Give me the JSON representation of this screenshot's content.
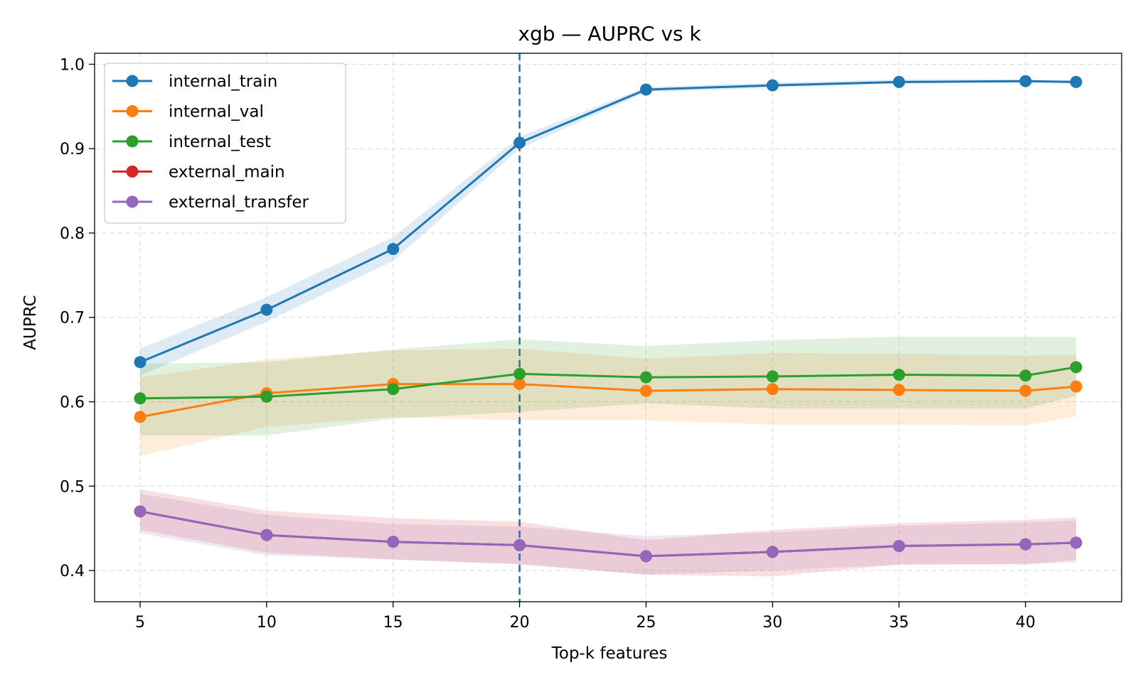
{
  "chart_data": {
    "type": "line",
    "title": "xgb — AUPRC vs k",
    "xlabel": "Top-k features",
    "ylabel": "AUPRC",
    "x": [
      5,
      10,
      15,
      20,
      25,
      30,
      35,
      40,
      42
    ],
    "xticks": [
      5,
      10,
      15,
      20,
      25,
      30,
      35,
      40
    ],
    "yticks": [
      0.4,
      0.5,
      0.6,
      0.7,
      0.8,
      0.9,
      1.0
    ],
    "xlim": [
      3.2,
      43.8
    ],
    "ylim": [
      0.363,
      1.013
    ],
    "grid": true,
    "legend_position": "top-left",
    "vline": {
      "x": 20,
      "color": "#1f77b4",
      "style": "dashed"
    },
    "series": [
      {
        "name": "internal_train",
        "color": "#1f77b4",
        "values": [
          0.647,
          0.709,
          0.781,
          0.907,
          0.97,
          0.975,
          0.979,
          0.98,
          0.979
        ],
        "lower": [
          0.631,
          0.695,
          0.767,
          0.9,
          0.967,
          0.972,
          0.977,
          0.978,
          0.977
        ],
        "upper": [
          0.663,
          0.724,
          0.795,
          0.914,
          0.973,
          0.978,
          0.982,
          0.982,
          0.981
        ]
      },
      {
        "name": "internal_val",
        "color": "#ff7f0e",
        "values": [
          0.582,
          0.61,
          0.621,
          0.621,
          0.613,
          0.615,
          0.614,
          0.613,
          0.618
        ],
        "lower": [
          0.536,
          0.57,
          0.582,
          0.578,
          0.578,
          0.573,
          0.573,
          0.572,
          0.583
        ],
        "upper": [
          0.629,
          0.65,
          0.661,
          0.663,
          0.651,
          0.658,
          0.657,
          0.655,
          0.656
        ]
      },
      {
        "name": "internal_test",
        "color": "#2ca02c",
        "values": [
          0.604,
          0.606,
          0.615,
          0.633,
          0.629,
          0.63,
          0.632,
          0.631,
          0.641
        ],
        "lower": [
          0.56,
          0.56,
          0.58,
          0.588,
          0.598,
          0.592,
          0.592,
          0.592,
          0.607
        ],
        "upper": [
          0.645,
          0.647,
          0.662,
          0.674,
          0.666,
          0.673,
          0.677,
          0.677,
          0.677
        ]
      },
      {
        "name": "external_main",
        "color": "#d62728",
        "values": [
          0.47,
          0.442,
          0.434,
          0.43,
          0.417,
          0.422,
          0.429,
          0.431,
          0.433
        ],
        "lower": [
          0.448,
          0.421,
          0.413,
          0.408,
          0.395,
          0.393,
          0.407,
          0.408,
          0.41
        ],
        "upper": [
          0.496,
          0.471,
          0.462,
          0.458,
          0.436,
          0.448,
          0.456,
          0.46,
          0.463
        ]
      },
      {
        "name": "external_transfer",
        "color": "#9467bd",
        "values": [
          0.47,
          0.442,
          0.434,
          0.43,
          0.417,
          0.422,
          0.429,
          0.431,
          0.433
        ],
        "lower": [
          0.444,
          0.418,
          0.413,
          0.407,
          0.395,
          0.4,
          0.407,
          0.407,
          0.413
        ],
        "upper": [
          0.491,
          0.466,
          0.455,
          0.452,
          0.441,
          0.445,
          0.453,
          0.457,
          0.459
        ]
      }
    ]
  }
}
